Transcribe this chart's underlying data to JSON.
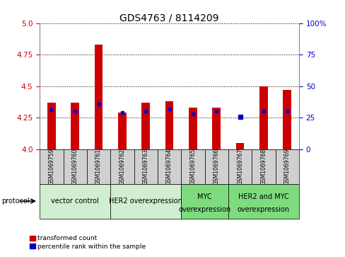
{
  "title": "GDS4763 / 8114209",
  "samples": [
    "GSM1069759",
    "GSM1069760",
    "GSM1069761",
    "GSM1069762",
    "GSM1069763",
    "GSM1069764",
    "GSM1069765",
    "GSM1069766",
    "GSM1069767",
    "GSM1069768",
    "GSM1069769"
  ],
  "red_values": [
    4.37,
    4.37,
    4.83,
    4.29,
    4.37,
    4.38,
    4.33,
    4.33,
    4.05,
    4.5,
    4.47
  ],
  "blue_values": [
    4.31,
    4.3,
    4.36,
    4.29,
    4.3,
    4.32,
    4.28,
    4.3,
    null,
    4.3,
    4.3
  ],
  "blue_dot": [
    null,
    null,
    null,
    null,
    null,
    null,
    null,
    null,
    4.255,
    null,
    null
  ],
  "ylim": [
    4.0,
    5.0
  ],
  "y2lim": [
    0,
    100
  ],
  "yticks": [
    4.0,
    4.25,
    4.5,
    4.75,
    5.0
  ],
  "y2ticks": [
    0,
    25,
    50,
    75,
    100
  ],
  "y2ticklabels": [
    "0",
    "25",
    "50",
    "75",
    "100%"
  ],
  "group_defs": [
    {
      "start": 0,
      "end": 3,
      "color": "#d0efd0",
      "label": "vector control",
      "label2": ""
    },
    {
      "start": 3,
      "end": 6,
      "color": "#d0efd0",
      "label": "HER2 overexpression",
      "label2": ""
    },
    {
      "start": 6,
      "end": 8,
      "color": "#7edc7e",
      "label": "MYC",
      "label2": "overexpression"
    },
    {
      "start": 8,
      "end": 11,
      "color": "#7edc7e",
      "label": "HER2 and MYC",
      "label2": "overexpression"
    }
  ],
  "bar_color": "#cc0000",
  "dot_color": "#0000cc",
  "bar_width": 0.35,
  "legend_red": "transformed count",
  "legend_blue": "percentile rank within the sample",
  "protocol_label": "protocol",
  "label_bg": "#d0d0d0",
  "title_fontsize": 10,
  "tick_fontsize": 7.5,
  "group_fontsize": 7,
  "sample_fontsize": 5.5
}
